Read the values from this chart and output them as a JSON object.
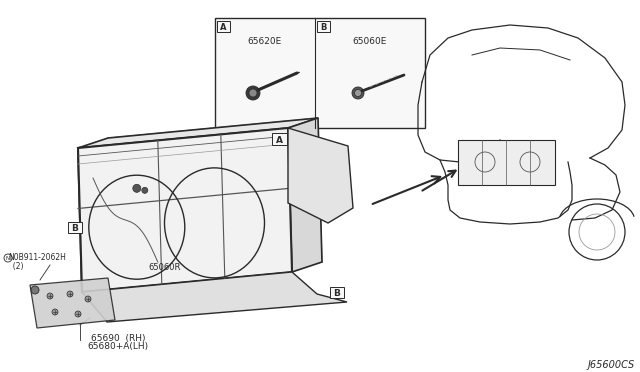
{
  "bg_color": "#ffffff",
  "line_color": "#2a2a2a",
  "light_line": "#999999",
  "mid_line": "#555555",
  "fig_width": 6.4,
  "fig_height": 3.72,
  "dpi": 100,
  "title_code": "J65600CS",
  "labels": {
    "part_a_code": "65620E",
    "part_b_code": "65060E",
    "part_b2": "65060R",
    "part_main1": "65690  (RH)",
    "part_main2": "65680+A(LH)",
    "bolt_code": "N0B911-2062H",
    "bolt_code2": "  (2)"
  }
}
